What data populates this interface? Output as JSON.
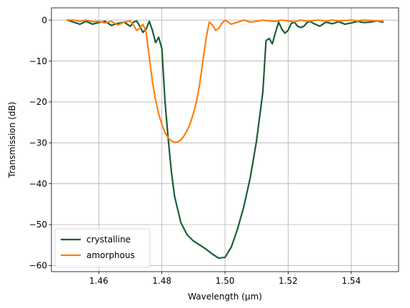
{
  "chart_data": {
    "type": "line",
    "title": "",
    "xlabel": "Wavelength (μm)",
    "ylabel": "Transmission (dB)",
    "xlim": [
      1.445,
      1.555
    ],
    "ylim": [
      -61.5,
      3.0
    ],
    "xticks": [
      1.46,
      1.48,
      1.5,
      1.52,
      1.54
    ],
    "xtick_labels": [
      "1.46",
      "1.48",
      "1.50",
      "1.52",
      "1.54"
    ],
    "yticks": [
      0,
      -10,
      -20,
      -30,
      -40,
      -50,
      -60
    ],
    "ytick_labels": [
      "0",
      "−10",
      "−20",
      "−30",
      "−40",
      "−50",
      "−60"
    ],
    "grid": true,
    "legend_position": "lower-left",
    "series": [
      {
        "name": "crystalline",
        "color": "#1a5e33",
        "x": [
          1.45,
          1.452,
          1.454,
          1.456,
          1.458,
          1.46,
          1.462,
          1.464,
          1.466,
          1.468,
          1.47,
          1.471,
          1.472,
          1.473,
          1.474,
          1.475,
          1.476,
          1.477,
          1.478,
          1.479,
          1.48,
          1.481,
          1.482,
          1.483,
          1.484,
          1.486,
          1.488,
          1.49,
          1.492,
          1.494,
          1.496,
          1.498,
          1.5,
          1.502,
          1.504,
          1.506,
          1.508,
          1.51,
          1.512,
          1.513,
          1.514,
          1.515,
          1.516,
          1.517,
          1.518,
          1.519,
          1.52,
          1.521,
          1.522,
          1.523,
          1.524,
          1.525,
          1.526,
          1.527,
          1.528,
          1.53,
          1.532,
          1.534,
          1.536,
          1.538,
          1.54,
          1.542,
          1.544,
          1.546,
          1.548,
          1.55
        ],
        "y": [
          0.0,
          -0.5,
          -1.0,
          -0.3,
          -1.0,
          -0.6,
          -0.3,
          -1.3,
          -0.8,
          -0.5,
          -1.5,
          -0.5,
          -0.2,
          -1.5,
          -3.0,
          -2.2,
          -0.3,
          -2.5,
          -5.5,
          -4.2,
          -7.0,
          -20.0,
          -29.0,
          -37.0,
          -43.0,
          -49.5,
          -52.5,
          -54.0,
          -55.0,
          -56.0,
          -57.2,
          -58.2,
          -58.0,
          -55.5,
          -51.0,
          -45.5,
          -38.5,
          -29.5,
          -17.5,
          -5.0,
          -4.5,
          -5.8,
          -3.0,
          -0.5,
          -2.2,
          -3.2,
          -2.5,
          -0.8,
          -0.5,
          -1.5,
          -1.8,
          -1.5,
          -0.6,
          -0.3,
          -0.8,
          -1.5,
          -0.5,
          -0.9,
          -0.4,
          -1.0,
          -0.7,
          -0.3,
          -0.6,
          -0.5,
          -0.2,
          -0.5
        ]
      },
      {
        "name": "amorphous",
        "color": "#ff7f0e",
        "x": [
          1.45,
          1.452,
          1.454,
          1.456,
          1.458,
          1.46,
          1.462,
          1.464,
          1.466,
          1.468,
          1.47,
          1.471,
          1.472,
          1.473,
          1.474,
          1.475,
          1.476,
          1.477,
          1.478,
          1.479,
          1.48,
          1.481,
          1.482,
          1.483,
          1.484,
          1.485,
          1.486,
          1.487,
          1.488,
          1.489,
          1.49,
          1.491,
          1.492,
          1.493,
          1.494,
          1.495,
          1.496,
          1.497,
          1.498,
          1.499,
          1.5,
          1.502,
          1.504,
          1.506,
          1.508,
          1.51,
          1.512,
          1.514,
          1.516,
          1.518,
          1.52,
          1.522,
          1.524,
          1.526,
          1.528,
          1.53,
          1.532,
          1.534,
          1.536,
          1.538,
          1.54,
          1.542,
          1.544,
          1.546,
          1.548,
          1.55
        ],
        "y": [
          0.0,
          0.0,
          -0.3,
          0.0,
          -0.4,
          -0.3,
          -0.7,
          -0.3,
          -1.2,
          -0.5,
          -0.2,
          -1.2,
          -2.5,
          -2.0,
          -1.0,
          -3.0,
          -9.0,
          -15.0,
          -19.5,
          -23.0,
          -25.5,
          -27.5,
          -28.8,
          -29.5,
          -29.9,
          -29.8,
          -29.3,
          -28.3,
          -27.0,
          -25.2,
          -22.8,
          -19.8,
          -15.5,
          -10.0,
          -4.5,
          -0.5,
          -1.2,
          -2.5,
          -2.0,
          -0.8,
          0.0,
          -1.0,
          -0.5,
          0.0,
          -0.5,
          -0.3,
          0.0,
          -0.2,
          -0.3,
          0.0,
          -0.2,
          -0.4,
          0.0,
          -0.3,
          -0.1,
          0.0,
          -0.3,
          0.0,
          -0.2,
          -0.1,
          0.0,
          -0.2,
          0.0,
          -0.1,
          -0.2,
          -0.2
        ]
      }
    ]
  }
}
